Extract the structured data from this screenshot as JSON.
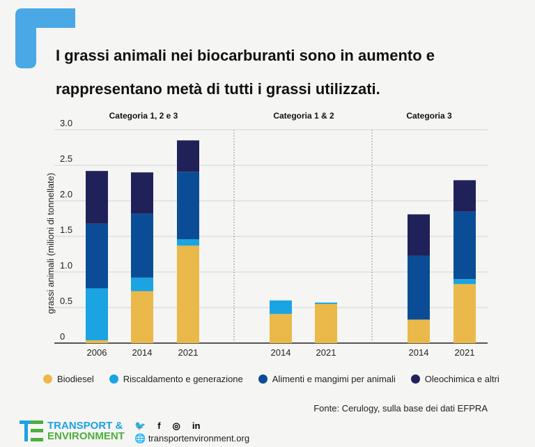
{
  "title": "I grassi animali nei biocarburanti sono in aumento e rappresentano metà di tutti i grassi utilizzati.",
  "chart_data": {
    "type": "bar",
    "stacked": true,
    "ylabel": "grassi animali (milioni di tonnellate)",
    "ylim": [
      0,
      3.0
    ],
    "yticks": [
      "0",
      "0.5",
      "1.0",
      "1.5",
      "2.0",
      "2.5",
      "3.0"
    ],
    "grid": true,
    "legend_placement": "bottom",
    "panels": [
      {
        "label": "Categoria 1, 2 e 3",
        "categories": [
          "2006",
          "2014",
          "2021"
        ]
      },
      {
        "label": "Categoria 1 & 2",
        "categories": [
          "2014",
          "2021"
        ]
      },
      {
        "label": "Categoria 3",
        "categories": [
          "2014",
          "2021"
        ]
      }
    ],
    "series": [
      {
        "name": "Biodiesel",
        "color": "#ebb94a",
        "values": [
          0.04,
          0.73,
          1.37,
          0.41,
          0.55,
          0.33,
          0.83
        ]
      },
      {
        "name": "Riscaldamento e generazione",
        "color": "#1ba3e2",
        "values": [
          0.73,
          0.19,
          0.09,
          0.19,
          0.02,
          0.0,
          0.07
        ]
      },
      {
        "name": "Alimenti e mangimi per animali",
        "color": "#0a4d96",
        "values": [
          0.91,
          0.9,
          0.95,
          0,
          0,
          0.9,
          0.95
        ]
      },
      {
        "name": "Oleochimica e altri",
        "color": "#21215a",
        "values": [
          0.74,
          0.58,
          0.44,
          0,
          0,
          0.58,
          0.44
        ]
      }
    ]
  },
  "source": "Fonte: Cerulogy, sulla base dei dati  EFPRA",
  "footer": {
    "logo_line1": "TRANSPORT &",
    "logo_line2": "ENVIRONMENT",
    "social": [
      "twitter-icon",
      "facebook-icon",
      "instagram-icon",
      "linkedin-icon"
    ],
    "website": "transportenvironment.org",
    "brand_blue": "#1ba3e2",
    "brand_green": "#4cae3c"
  }
}
